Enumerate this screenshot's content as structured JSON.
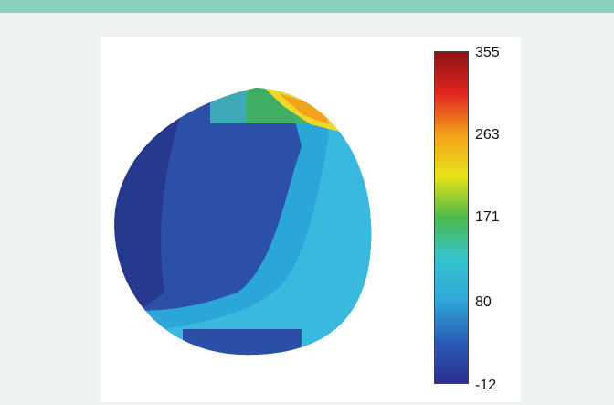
{
  "colors": {
    "top_band": "#8fcfc0",
    "background": "#eef3ef",
    "card": "#ffffff"
  },
  "colorbar": {
    "ticks": [
      {
        "label": "355"
      },
      {
        "label": "263"
      },
      {
        "label": "171"
      },
      {
        "label": "80"
      },
      {
        "label": "-12"
      }
    ],
    "gradient": [
      "#2a2f8f",
      "#2b5bb5",
      "#2fa7d8",
      "#35c4cf",
      "#4db84a",
      "#e8e21a",
      "#f3a21b",
      "#e1251f",
      "#8b1412"
    ]
  }
}
